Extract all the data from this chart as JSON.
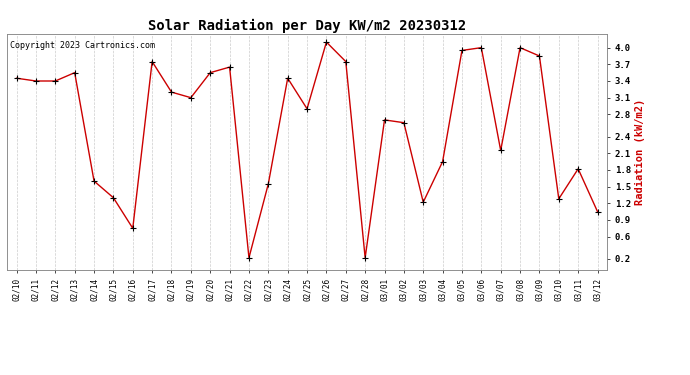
{
  "title": "Solar Radiation per Day KW/m2 20230312",
  "copyright": "Copyright 2023 Cartronics.com",
  "ylabel": "Radiation (kW/m2)",
  "dates": [
    "02/10",
    "02/11",
    "02/12",
    "02/13",
    "02/14",
    "02/15",
    "02/16",
    "02/17",
    "02/18",
    "02/19",
    "02/20",
    "02/21",
    "02/22",
    "02/23",
    "02/24",
    "02/25",
    "02/26",
    "02/27",
    "02/28",
    "03/01",
    "03/02",
    "03/03",
    "03/04",
    "03/05",
    "03/06",
    "03/07",
    "03/08",
    "03/09",
    "03/10",
    "03/11",
    "03/12"
  ],
  "values": [
    3.45,
    3.4,
    3.4,
    3.55,
    1.6,
    1.3,
    0.75,
    3.75,
    3.2,
    3.1,
    3.55,
    3.65,
    0.22,
    1.55,
    3.45,
    2.9,
    4.1,
    3.75,
    0.22,
    2.7,
    2.65,
    1.22,
    1.95,
    3.95,
    4.0,
    2.15,
    4.0,
    3.85,
    1.28,
    1.82,
    1.05
  ],
  "line_color": "#cc0000",
  "marker_color": "#000000",
  "background_color": "#ffffff",
  "grid_color": "#cccccc",
  "title_color": "#000000",
  "ylabel_color": "#cc0000",
  "copyright_color": "#000000",
  "ylim": [
    0.0,
    4.25
  ],
  "yticks": [
    0.2,
    0.6,
    0.9,
    1.2,
    1.5,
    1.8,
    2.1,
    2.4,
    2.8,
    3.1,
    3.4,
    3.7,
    4.0
  ],
  "title_fontsize": 10,
  "copyright_fontsize": 6,
  "xtick_fontsize": 5.5,
  "ytick_fontsize": 6.5,
  "ylabel_fontsize": 7.5
}
